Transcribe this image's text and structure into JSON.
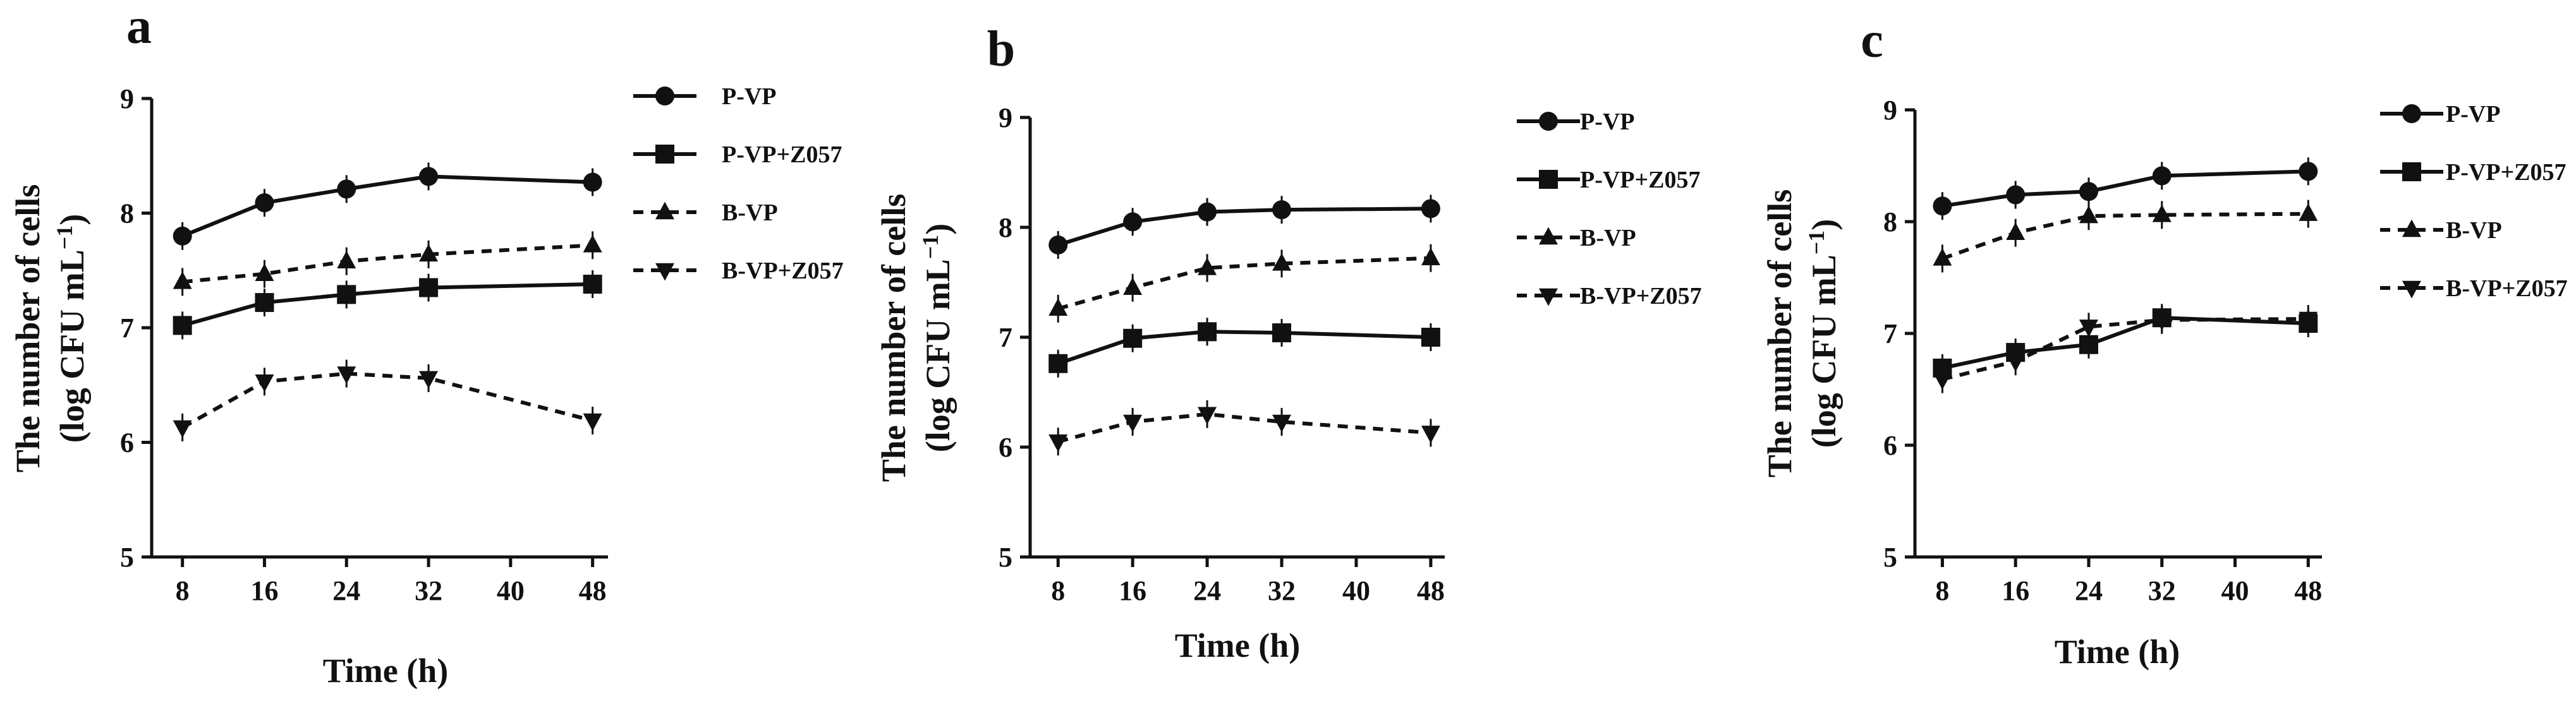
{
  "chart_data": [
    {
      "type": "line",
      "panel_label": "a",
      "x": [
        8,
        16,
        24,
        32,
        48
      ],
      "xlabel": "Time (h)",
      "ylabel_line1": "The number of cells",
      "ylabel_line2_main": "(log CFU mL",
      "ylabel_line2_sup": "−1",
      "ylabel_line2_end": ")",
      "xticks": [
        8,
        16,
        24,
        32,
        40,
        48
      ],
      "yticks": [
        5,
        6,
        7,
        8,
        9
      ],
      "xlim": [
        5,
        49.5
      ],
      "ylim": [
        5,
        9
      ],
      "legend_position": "right",
      "series": [
        {
          "name": "P-VP",
          "marker": "circle",
          "dashed": false,
          "values": [
            7.8,
            8.09,
            8.21,
            8.32,
            8.27
          ]
        },
        {
          "name": "P-VP+Z057",
          "marker": "square",
          "dashed": false,
          "values": [
            7.02,
            7.22,
            7.29,
            7.35,
            7.38
          ]
        },
        {
          "name": "B-VP",
          "marker": "triangle-up",
          "dashed": true,
          "values": [
            7.4,
            7.47,
            7.58,
            7.64,
            7.72
          ]
        },
        {
          "name": "B-VP+Z057",
          "marker": "triangle-down",
          "dashed": true,
          "values": [
            6.13,
            6.53,
            6.6,
            6.56,
            6.19
          ]
        }
      ]
    },
    {
      "type": "line",
      "panel_label": "b",
      "x": [
        8,
        16,
        24,
        32,
        48
      ],
      "xlabel": "Time (h)",
      "ylabel_line1": "The number of cells",
      "ylabel_line2_main": "(log CFU mL",
      "ylabel_line2_sup": "−1",
      "ylabel_line2_end": ")",
      "xticks": [
        8,
        16,
        24,
        32,
        40,
        48
      ],
      "yticks": [
        5,
        6,
        7,
        8,
        9
      ],
      "xlim": [
        5,
        49.5
      ],
      "ylim": [
        5,
        9
      ],
      "legend_position": "right",
      "series": [
        {
          "name": "P-VP",
          "marker": "circle",
          "dashed": false,
          "values": [
            7.84,
            8.05,
            8.14,
            8.16,
            8.17
          ]
        },
        {
          "name": "P-VP+Z057",
          "marker": "square",
          "dashed": false,
          "values": [
            6.76,
            6.99,
            7.05,
            7.04,
            7.0
          ]
        },
        {
          "name": "B-VP",
          "marker": "triangle-up",
          "dashed": true,
          "values": [
            7.26,
            7.45,
            7.63,
            7.67,
            7.72
          ]
        },
        {
          "name": "B-VP+Z057",
          "marker": "triangle-down",
          "dashed": true,
          "values": [
            6.05,
            6.23,
            6.3,
            6.23,
            6.13
          ]
        }
      ]
    },
    {
      "type": "line",
      "panel_label": "c",
      "x": [
        8,
        16,
        24,
        32,
        48
      ],
      "xlabel": "Time (h)",
      "ylabel_line1": "The number of cells",
      "ylabel_line2_main": "(log CFU mL",
      "ylabel_line2_sup": "−1",
      "ylabel_line2_end": ")",
      "xticks": [
        8,
        16,
        24,
        32,
        40,
        48
      ],
      "yticks": [
        5,
        6,
        7,
        8,
        9
      ],
      "xlim": [
        5,
        49.5
      ],
      "ylim": [
        5,
        9
      ],
      "legend_position": "right",
      "series": [
        {
          "name": "P-VP",
          "marker": "circle",
          "dashed": false,
          "values": [
            8.14,
            8.24,
            8.27,
            8.41,
            8.45
          ]
        },
        {
          "name": "P-VP+Z057",
          "marker": "square",
          "dashed": false,
          "values": [
            6.69,
            6.83,
            6.9,
            7.14,
            7.09
          ]
        },
        {
          "name": "B-VP",
          "marker": "triangle-up",
          "dashed": true,
          "values": [
            7.67,
            7.9,
            8.05,
            8.06,
            8.07
          ]
        },
        {
          "name": "B-VP+Z057",
          "marker": "triangle-down",
          "dashed": true,
          "values": [
            6.59,
            6.75,
            7.06,
            7.12,
            7.13
          ]
        }
      ]
    }
  ]
}
